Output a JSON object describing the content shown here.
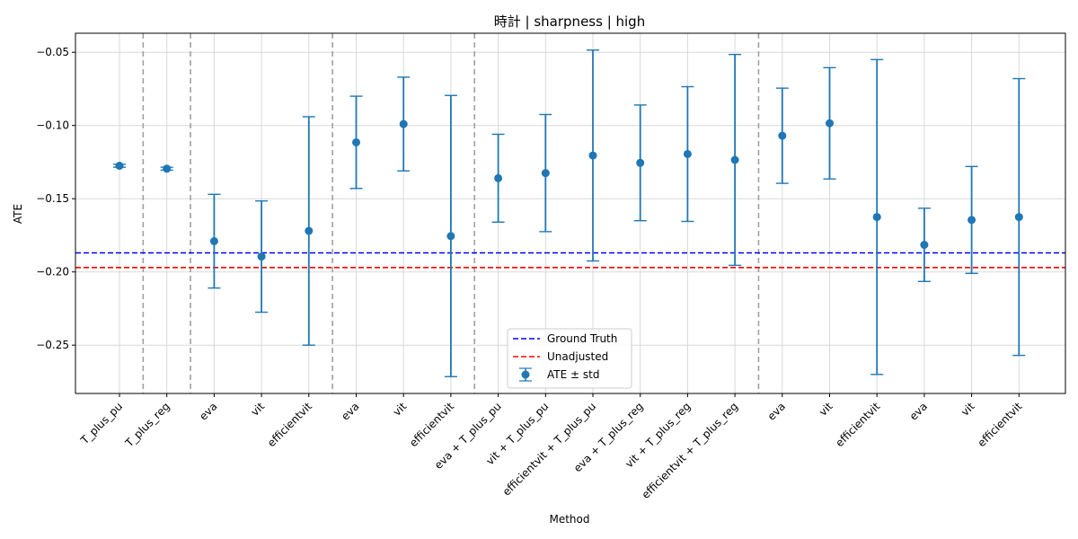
{
  "chart_data": {
    "type": "errorbar",
    "title": "時計 | sharpness | high",
    "xlabel": "Method",
    "ylabel": "ATE",
    "ylim": [
      -0.283,
      -0.037
    ],
    "yticks": [
      -0.25,
      -0.2,
      -0.15,
      -0.1,
      -0.05
    ],
    "ytick_labels": [
      "−0.25",
      "−0.20",
      "−0.15",
      "−0.10",
      "−0.05"
    ],
    "grid": true,
    "legend_position": "lower center",
    "categories": [
      "T_plus_pu",
      "T_plus_reg",
      "eva",
      "vit",
      "efficientvit",
      "eva",
      "vit",
      "efficientvit",
      "eva + T_plus_pu",
      "vit + T_plus_pu",
      "efficientvit + T_plus_pu",
      "eva + T_plus_reg",
      "vit + T_plus_reg",
      "efficientvit + T_plus_reg",
      "eva",
      "vit",
      "efficientvit",
      "eva",
      "vit",
      "efficientvit"
    ],
    "group_separators_after_index": [
      0.5,
      1.5,
      4.5,
      7.5,
      13.5
    ],
    "series": [
      {
        "name": "ATE ± std",
        "color": "#1f77b4",
        "values": [
          -0.1275,
          -0.1295,
          -0.179,
          -0.1895,
          -0.172,
          -0.1115,
          -0.099,
          -0.1755,
          -0.136,
          -0.1325,
          -0.1205,
          -0.1255,
          -0.1195,
          -0.1235,
          -0.107,
          -0.0985,
          -0.1625,
          -0.1815,
          -0.1645,
          -0.1625
        ],
        "std": [
          0.001,
          0.001,
          0.032,
          0.038,
          0.078,
          0.0315,
          0.032,
          0.096,
          0.03,
          0.04,
          0.072,
          0.0395,
          0.046,
          0.072,
          0.0325,
          0.038,
          0.1075,
          0.025,
          0.0365,
          0.0945
        ]
      }
    ],
    "reference_lines": [
      {
        "name": "Ground Truth",
        "value": -0.187,
        "color": "#0000ff"
      },
      {
        "name": "Unadjusted",
        "value": -0.197,
        "color": "#ff0000"
      }
    ],
    "legend": [
      "Ground Truth",
      "Unadjusted",
      "ATE ± std"
    ]
  }
}
